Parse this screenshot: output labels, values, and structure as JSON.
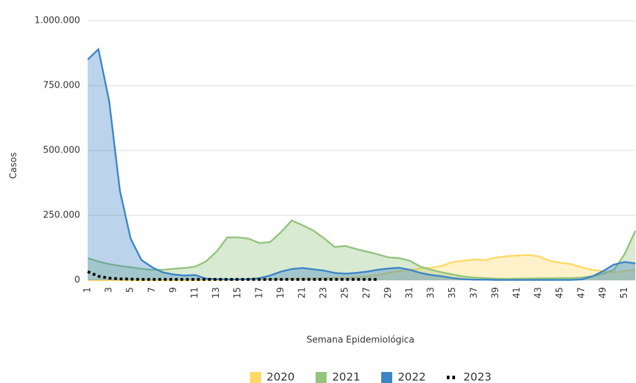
{
  "chart_data": {
    "type": "area",
    "x_label": "Semana Epidemiológica",
    "y_label": "Casos",
    "categories": [
      "1",
      null,
      "3",
      null,
      "5",
      null,
      "7",
      null,
      "9",
      null,
      "11",
      null,
      "13",
      null,
      "15",
      null,
      "17",
      null,
      "19",
      null,
      "21",
      null,
      "23",
      null,
      "25",
      null,
      "27",
      null,
      "29",
      null,
      "31",
      null,
      "33",
      null,
      "35",
      null,
      "37",
      null,
      "39",
      null,
      "41",
      null,
      "43",
      null,
      "45",
      null,
      "47",
      null,
      "49",
      null,
      "51",
      null
    ],
    "ylim": [
      0,
      1000000
    ],
    "yticks": [
      {
        "value": 0,
        "label": "0"
      },
      {
        "value": 250000,
        "label": "250.000"
      },
      {
        "value": 500000,
        "label": "500.000"
      },
      {
        "value": 750000,
        "label": "750.000"
      },
      {
        "value": 1000000,
        "label": "1.000.000"
      }
    ],
    "grid": true,
    "legend": "bottom",
    "series": [
      {
        "name": "2020",
        "color": "#ffd966",
        "style": "area",
        "values": [
          0,
          0,
          0,
          0,
          0,
          0,
          0,
          0,
          0,
          0,
          0,
          1000,
          1000,
          2000,
          2000,
          3000,
          3000,
          4000,
          4000,
          5000,
          6000,
          7000,
          8000,
          9000,
          10000,
          12000,
          15000,
          20000,
          28000,
          35000,
          40000,
          45000,
          48000,
          55000,
          70000,
          75000,
          80000,
          77000,
          87000,
          92000,
          95000,
          97000,
          92000,
          75000,
          67000,
          62000,
          50000,
          40000,
          35000,
          30000,
          35000,
          40000
        ]
      },
      {
        "name": "2021",
        "color": "#93c47d",
        "style": "area",
        "values": [
          85000,
          72000,
          62000,
          55000,
          50000,
          44000,
          40000,
          40000,
          44000,
          47000,
          52000,
          72000,
          110000,
          165000,
          165000,
          160000,
          143000,
          147000,
          185000,
          230000,
          212000,
          192000,
          162000,
          128000,
          132000,
          120000,
          110000,
          100000,
          88000,
          85000,
          75000,
          52000,
          40000,
          30000,
          22000,
          14000,
          10000,
          8000,
          6000,
          5000,
          6000,
          6000,
          7000,
          7000,
          8000,
          8000,
          10000,
          15000,
          25000,
          40000,
          100000,
          190000
        ]
      },
      {
        "name": "2022",
        "color": "#3d85c6",
        "style": "area",
        "values": [
          850000,
          890000,
          690000,
          345000,
          160000,
          78000,
          50000,
          30000,
          22000,
          18000,
          20000,
          6000,
          4000,
          3000,
          3000,
          4000,
          8000,
          18000,
          33000,
          43000,
          47000,
          42000,
          37000,
          28000,
          25000,
          28000,
          33000,
          40000,
          45000,
          48000,
          40000,
          28000,
          20000,
          15000,
          8000,
          4000,
          2000,
          2000,
          1000,
          1000,
          1000,
          1000,
          1000,
          1000,
          1000,
          1000,
          3000,
          15000,
          35000,
          60000,
          70000,
          65000
        ]
      },
      {
        "name": "2023",
        "color": "#000000",
        "style": "dotted",
        "values": [
          33000,
          15000,
          8000,
          5000,
          4000,
          3000,
          3000,
          3000,
          3000,
          3000,
          3000,
          3000,
          3000,
          3000,
          3000,
          3000,
          3000,
          3000,
          3000,
          3000,
          3000,
          3000,
          3000,
          3000,
          3000,
          3000,
          3000,
          3000,
          null,
          null,
          null,
          null,
          null,
          null,
          null,
          null,
          null,
          null,
          null,
          null,
          null,
          null,
          null,
          null,
          null,
          null,
          null,
          null,
          null,
          null,
          null,
          null
        ]
      }
    ]
  }
}
